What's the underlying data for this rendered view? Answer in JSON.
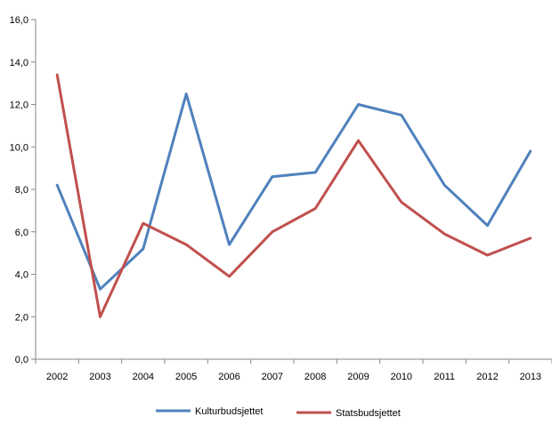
{
  "chart_data": {
    "type": "line",
    "title": "",
    "xlabel": "",
    "ylabel": "",
    "categories": [
      "2002",
      "2003",
      "2004",
      "2005",
      "2006",
      "2007",
      "2008",
      "2009",
      "2010",
      "2011",
      "2012",
      "2013"
    ],
    "ylim": [
      0,
      16
    ],
    "yticks": [
      0,
      2,
      4,
      6,
      8,
      10,
      12,
      14,
      16
    ],
    "ytick_labels": [
      "0,0",
      "2,0",
      "4,0",
      "6,0",
      "8,0",
      "10,0",
      "12,0",
      "14,0",
      "16,0"
    ],
    "grid": false,
    "legend_position": "bottom",
    "series": [
      {
        "name": "Kulturbudsjettet",
        "color": "#4f81bd",
        "values": [
          8.2,
          3.3,
          5.2,
          12.5,
          5.4,
          8.6,
          8.8,
          12.0,
          11.5,
          8.2,
          6.3,
          9.8
        ]
      },
      {
        "name": "Statsbudsjettet",
        "color": "#c0504d",
        "values": [
          13.4,
          2.0,
          6.4,
          5.4,
          3.9,
          6.0,
          7.1,
          10.3,
          7.4,
          5.9,
          4.9,
          5.7
        ]
      }
    ]
  }
}
